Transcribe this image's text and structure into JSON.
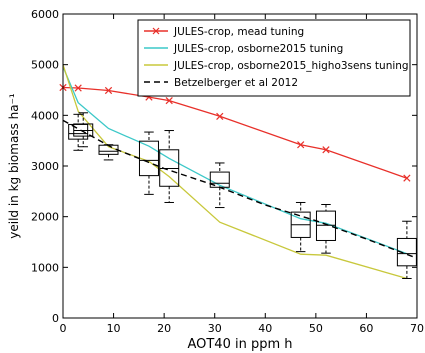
{
  "chart_data": {
    "type": "line",
    "title": "",
    "xlabel": "AOT40 in ppm h",
    "ylabel": "yeild in kg biomass ha⁻¹",
    "xlim": [
      0,
      70
    ],
    "ylim": [
      0,
      6000
    ],
    "xticks": [
      0,
      10,
      20,
      30,
      40,
      50,
      60,
      70
    ],
    "yticks": [
      0,
      1000,
      2000,
      3000,
      4000,
      5000,
      6000
    ],
    "grid": false,
    "legend_position": "top-right",
    "series": [
      {
        "name": "JULES-crop, mead tuning",
        "color": "#e8302a",
        "marker": "x",
        "style": "solid",
        "points": [
          [
            0,
            4550
          ],
          [
            3,
            4540
          ],
          [
            9,
            4490
          ],
          [
            17,
            4360
          ],
          [
            21,
            4290
          ],
          [
            31,
            3980
          ],
          [
            47,
            3420
          ],
          [
            52,
            3320
          ],
          [
            68,
            2760
          ]
        ]
      },
      {
        "name": "JULES-crop, osborne2015 tuning",
        "color": "#3cc8c8",
        "marker": "none",
        "style": "solid",
        "points": [
          [
            0,
            4960
          ],
          [
            3,
            4250
          ],
          [
            9,
            3740
          ],
          [
            17,
            3390
          ],
          [
            21,
            3150
          ],
          [
            31,
            2620
          ],
          [
            47,
            1960
          ],
          [
            52,
            1870
          ],
          [
            68,
            1270
          ]
        ]
      },
      {
        "name": "JULES-crop, osborne2015_higho3sens tuning",
        "color": "#c8c83c",
        "marker": "none",
        "style": "solid",
        "points": [
          [
            0,
            5000
          ],
          [
            3,
            4080
          ],
          [
            9,
            3380
          ],
          [
            17,
            3090
          ],
          [
            21,
            2790
          ],
          [
            31,
            1890
          ],
          [
            47,
            1260
          ],
          [
            52,
            1240
          ],
          [
            68,
            780
          ]
        ]
      },
      {
        "name": "Betzelberger et al 2012",
        "color": "#000000",
        "marker": "none",
        "style": "dashed",
        "points": [
          [
            0,
            3900
          ],
          [
            10,
            3350
          ],
          [
            20,
            2950
          ],
          [
            30,
            2620
          ],
          [
            40,
            2230
          ],
          [
            50,
            1920
          ],
          [
            60,
            1560
          ],
          [
            70,
            1180
          ]
        ]
      }
    ],
    "boxplots": [
      {
        "x": 3,
        "q1": 3530,
        "median": 3640,
        "q3": 3820,
        "whisker_low": 3310,
        "whisker_high": 4020
      },
      {
        "x": 4,
        "q1": 3590,
        "median": 3700,
        "q3": 3830,
        "whisker_low": 3380,
        "whisker_high": 4050
      },
      {
        "x": 9,
        "q1": 3230,
        "median": 3290,
        "q3": 3410,
        "whisker_low": 3120,
        "whisker_high": 3420
      },
      {
        "x": 17,
        "q1": 2810,
        "median": 3110,
        "q3": 3490,
        "whisker_low": 2440,
        "whisker_high": 3670
      },
      {
        "x": 21,
        "q1": 2600,
        "median": 2950,
        "q3": 3320,
        "whisker_low": 2280,
        "whisker_high": 3700
      },
      {
        "x": 31,
        "q1": 2580,
        "median": 2660,
        "q3": 2880,
        "whisker_low": 2180,
        "whisker_high": 3060
      },
      {
        "x": 47,
        "q1": 1590,
        "median": 1840,
        "q3": 2090,
        "whisker_low": 1310,
        "whisker_high": 2280
      },
      {
        "x": 52,
        "q1": 1530,
        "median": 1830,
        "q3": 2110,
        "whisker_low": 1280,
        "whisker_high": 2240
      },
      {
        "x": 68,
        "q1": 1030,
        "median": 1270,
        "q3": 1570,
        "whisker_low": 780,
        "whisker_high": 1910
      }
    ]
  }
}
